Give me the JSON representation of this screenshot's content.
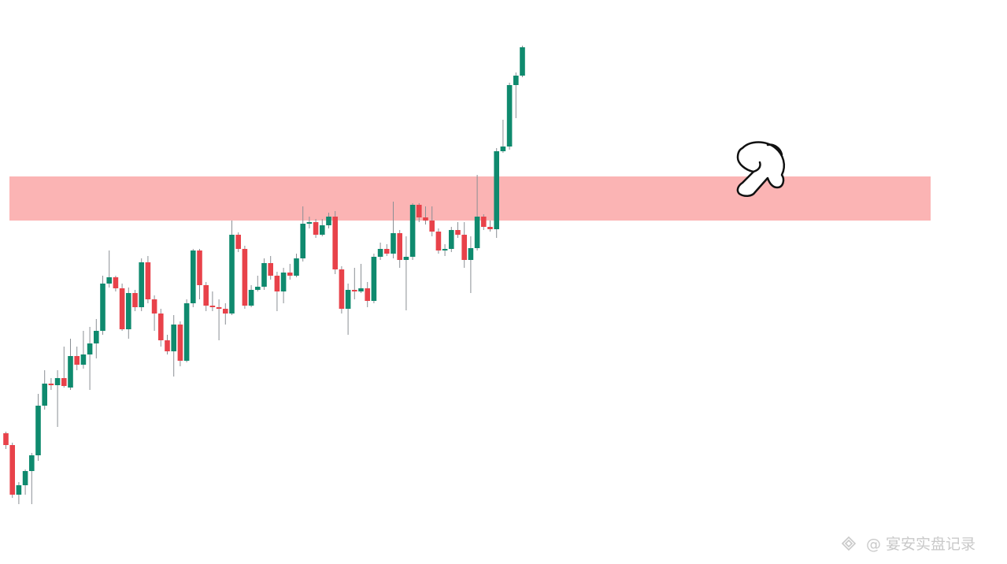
{
  "chart_data": {
    "type": "candlestick",
    "ylim": [
      0,
      716
    ],
    "up_color": "#0f8a6e",
    "down_color": "#e8424a",
    "zone": {
      "range": [
        436,
        492
      ],
      "color": "#fbb4b4"
    },
    "open": [
      166,
      151,
      88,
      100,
      118,
      138,
      201,
      229,
      227,
      236,
      224,
      264,
      253,
      266,
      280,
      296,
      356,
      364,
      350,
      298,
      344,
      326,
      383,
      336,
      318,
      284,
      270,
      304,
      258,
      331,
      398,
      354,
      328,
      326,
      324,
      318,
      418,
      400,
      328,
      348,
      352,
      382,
      366,
      346,
      370,
      366,
      388,
      432,
      434,
      418,
      430,
      441,
      374,
      324,
      348,
      346,
      350,
      334,
      390,
      400,
      394,
      420,
      386,
      390,
      456,
      440,
      436,
      422,
      398,
      400,
      424,
      418,
      386,
      401,
      441,
      428,
      425,
      524,
      530,
      608,
      620
    ],
    "high": [
      168,
      154,
      104,
      120,
      141,
      216,
      246,
      236,
      246,
      276,
      286,
      276,
      296,
      301,
      311,
      366,
      398,
      366,
      356,
      351,
      348,
      388,
      391,
      341,
      324,
      291,
      316,
      308,
      336,
      400,
      400,
      358,
      346,
      336,
      331,
      436,
      421,
      404,
      354,
      366,
      388,
      391,
      371,
      376,
      381,
      394,
      454,
      441,
      438,
      438,
      446,
      448,
      378,
      356,
      376,
      381,
      358,
      394,
      408,
      406,
      460,
      424,
      416,
      458,
      458,
      454,
      454,
      426,
      406,
      428,
      434,
      434,
      416,
      494,
      444,
      436,
      528,
      564,
      611,
      624,
      658
    ],
    "low": [
      146,
      84,
      76,
      88,
      76,
      131,
      196,
      221,
      174,
      224,
      221,
      246,
      248,
      221,
      261,
      291,
      351,
      346,
      296,
      286,
      321,
      321,
      331,
      296,
      276,
      266,
      238,
      251,
      256,
      326,
      336,
      321,
      321,
      284,
      304,
      316,
      396,
      324,
      326,
      346,
      348,
      361,
      321,
      331,
      361,
      364,
      384,
      426,
      414,
      416,
      426,
      368,
      318,
      291,
      336,
      344,
      326,
      331,
      386,
      391,
      388,
      376,
      322,
      386,
      434,
      431,
      416,
      394,
      391,
      396,
      414,
      376,
      344,
      398,
      424,
      422,
      414,
      522,
      526,
      566,
      618
    ],
    "close": [
      151,
      88,
      100,
      118,
      138,
      201,
      229,
      227,
      236,
      226,
      264,
      253,
      266,
      280,
      296,
      356,
      364,
      350,
      298,
      344,
      326,
      383,
      336,
      318,
      284,
      270,
      304,
      258,
      331,
      398,
      354,
      328,
      326,
      324,
      318,
      418,
      400,
      328,
      348,
      352,
      382,
      366,
      346,
      370,
      366,
      388,
      432,
      434,
      418,
      430,
      441,
      374,
      324,
      348,
      346,
      350,
      334,
      390,
      400,
      394,
      420,
      386,
      390,
      456,
      440,
      436,
      422,
      398,
      400,
      424,
      418,
      386,
      401,
      441,
      428,
      425,
      524,
      530,
      608,
      620,
      656
    ],
    "watermark": "@ 宴安实盘记录"
  }
}
